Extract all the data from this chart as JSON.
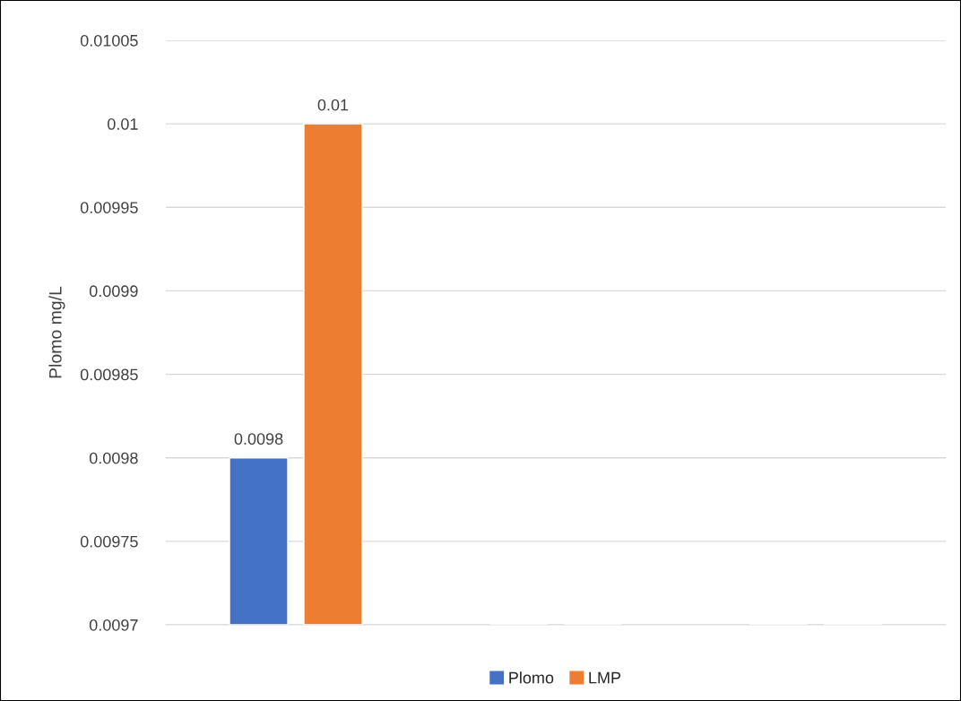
{
  "chart_data": {
    "type": "bar",
    "ylabel": "Plomo mg/L",
    "categories": [
      null,
      null,
      null
    ],
    "series": [
      {
        "name": "Plomo",
        "color": "#4472c4",
        "values": [
          0.0098,
          null,
          null
        ]
      },
      {
        "name": "LMP",
        "color": "#ed7d31",
        "values": [
          0.01,
          null,
          null
        ]
      }
    ],
    "ylim": [
      0.0097,
      0.01005
    ],
    "yticks": [
      0.0097,
      0.00975,
      0.0098,
      0.00985,
      0.0099,
      0.00995,
      0.01,
      0.01005
    ],
    "grid": "y",
    "legend": "bottom",
    "data_labels": true
  }
}
